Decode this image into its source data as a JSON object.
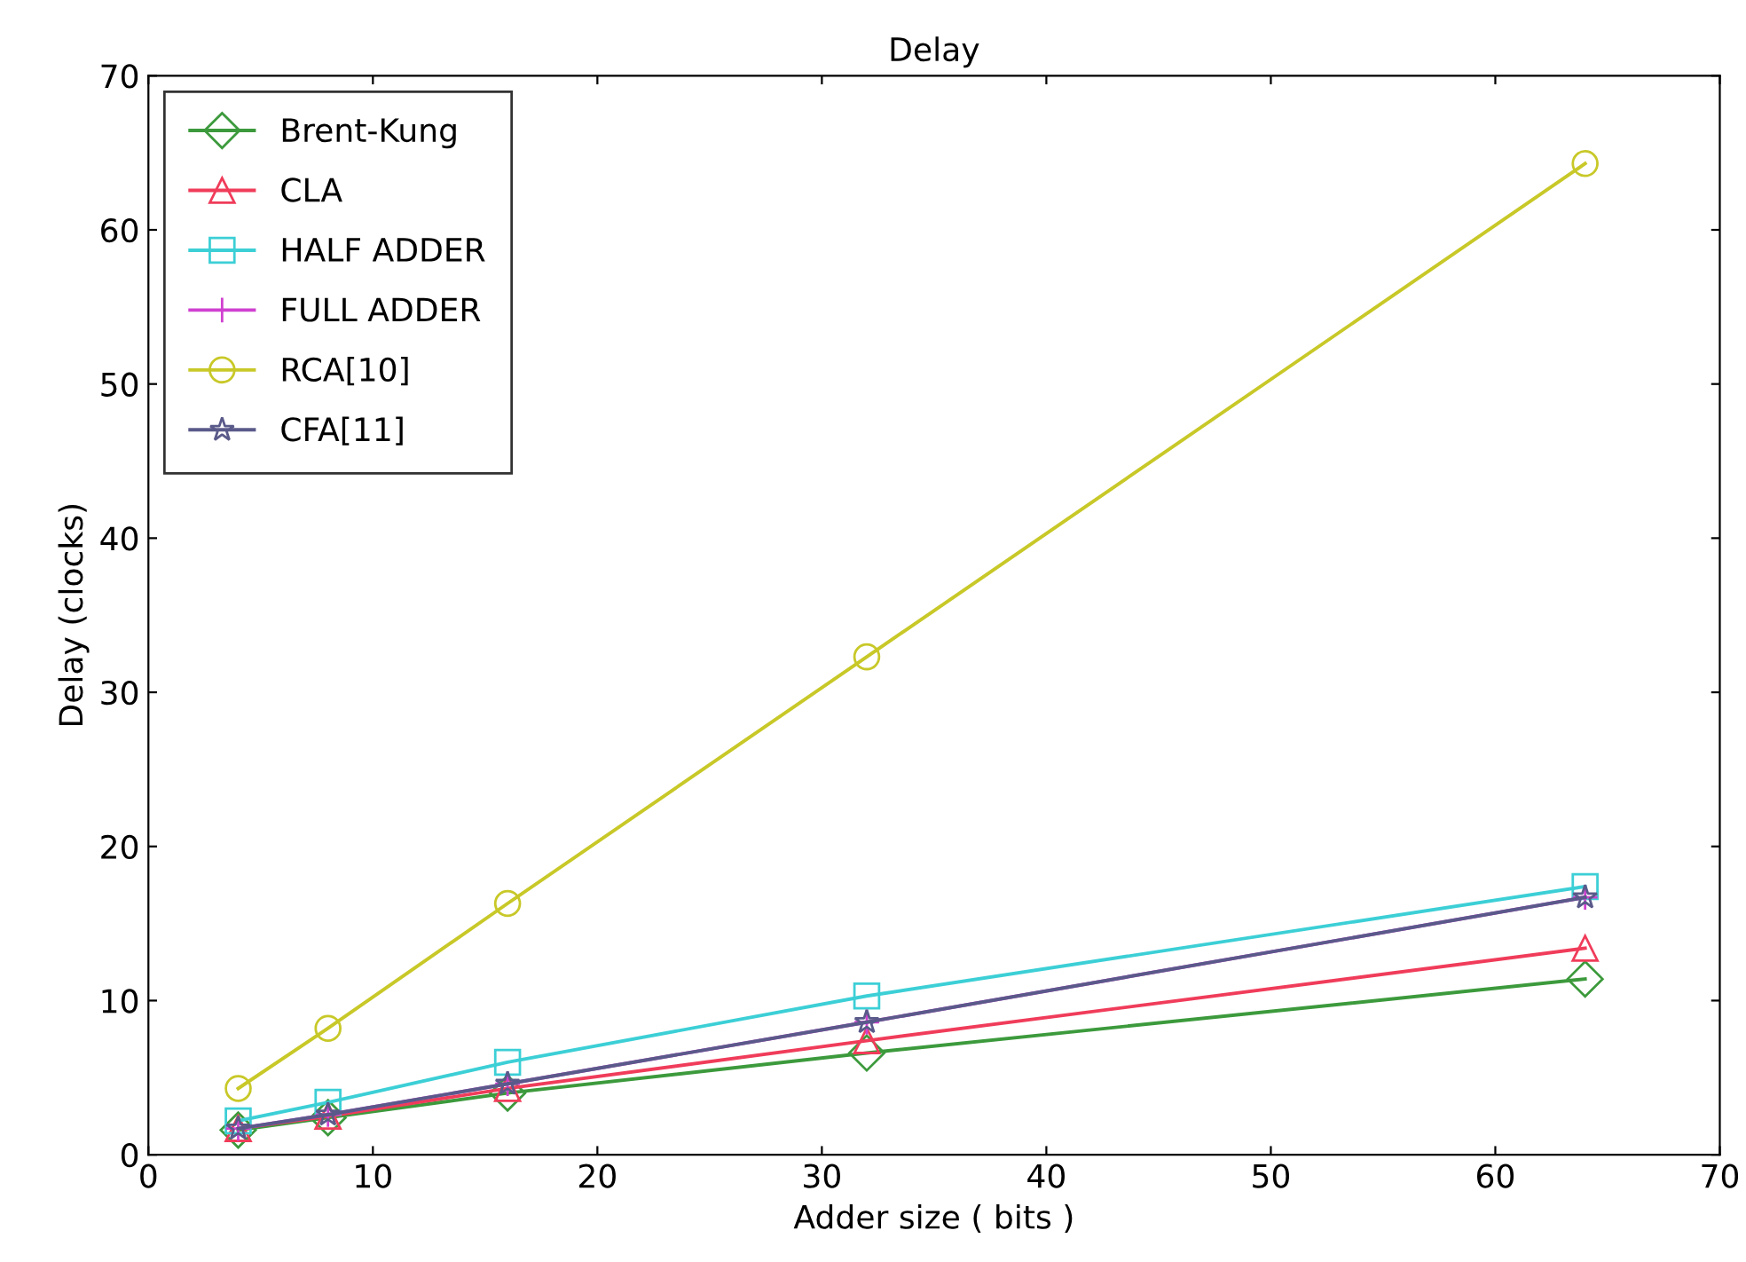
{
  "chart_data": {
    "type": "line",
    "title": "Delay",
    "xlabel": "Adder size ( bits )",
    "ylabel": "Delay (clocks)",
    "x": [
      4,
      8,
      16,
      32,
      64
    ],
    "series": [
      {
        "name": "Brent-Kung",
        "color": "#3c9a3c",
        "marker": "diamond",
        "values": [
          1.6,
          2.4,
          4.0,
          6.6,
          11.4
        ]
      },
      {
        "name": "CLA",
        "color": "#f03c5a",
        "marker": "triangle",
        "values": [
          1.7,
          2.5,
          4.3,
          7.4,
          13.4
        ]
      },
      {
        "name": "HALF ADDER",
        "color": "#3ccfd6",
        "marker": "square",
        "values": [
          2.2,
          3.4,
          6.0,
          10.3,
          17.4
        ]
      },
      {
        "name": "FULL ADDER",
        "color": "#d040d0",
        "marker": "cross",
        "values": [
          1.7,
          2.6,
          4.6,
          8.6,
          16.7
        ]
      },
      {
        "name": "RCA[10]",
        "color": "#c8c828",
        "marker": "circle",
        "values": [
          4.3,
          8.2,
          16.3,
          32.3,
          64.3
        ]
      },
      {
        "name": "CFA[11]",
        "color": "#5a5a8a",
        "marker": "star",
        "values": [
          1.7,
          2.6,
          4.6,
          8.6,
          16.7
        ]
      }
    ],
    "xlim": [
      0,
      70
    ],
    "xticks": [
      0,
      10,
      20,
      30,
      40,
      50,
      60,
      70
    ],
    "ylim": [
      0,
      70
    ],
    "yticks": [
      0,
      10,
      20,
      30,
      40,
      50,
      60,
      70
    ],
    "grid": false,
    "legend": "top left",
    "line_style": "solid"
  }
}
